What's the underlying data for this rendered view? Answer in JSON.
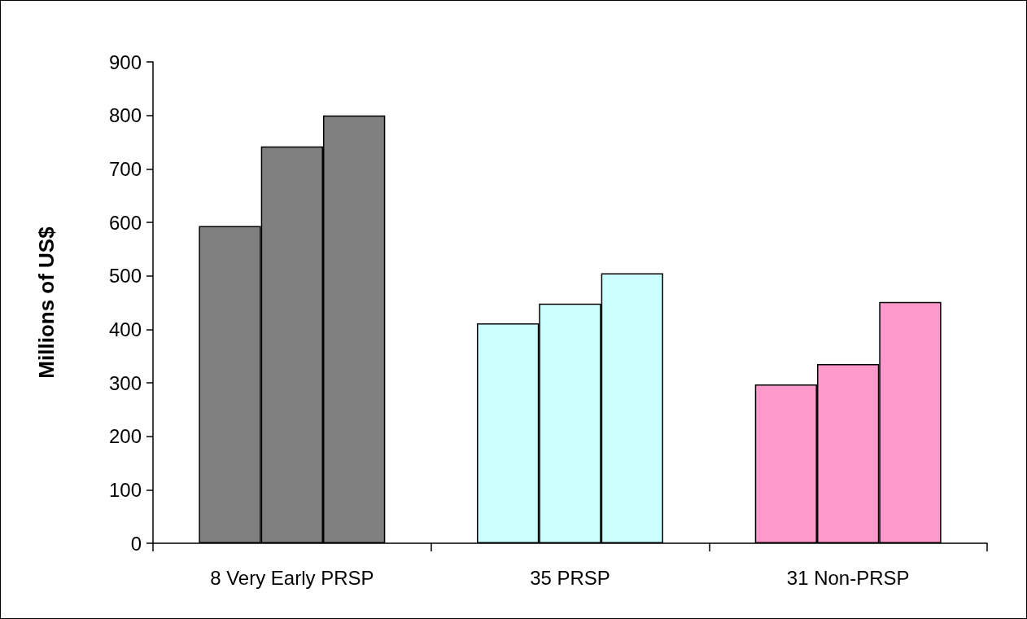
{
  "chart_data": {
    "type": "bar",
    "ylabel": "Millions of US$",
    "categories": [
      "8 Very Early PRSP",
      "35 PRSP",
      "31 Non-PRSP"
    ],
    "series": [
      {
        "colors": [
          "#808080",
          "#ccffff",
          "#ff99cc"
        ],
        "values": [
          593,
          411,
          297
        ]
      },
      {
        "colors": [
          "#808080",
          "#ccffff",
          "#ff99cc"
        ],
        "values": [
          742,
          448,
          335
        ]
      },
      {
        "colors": [
          "#808080",
          "#ccffff",
          "#ff99cc"
        ],
        "values": [
          800,
          505,
          451
        ]
      }
    ],
    "ylim": [
      0,
      900
    ],
    "yticks": [
      0,
      100,
      200,
      300,
      400,
      500,
      600,
      700,
      800,
      900
    ],
    "grid": false
  }
}
